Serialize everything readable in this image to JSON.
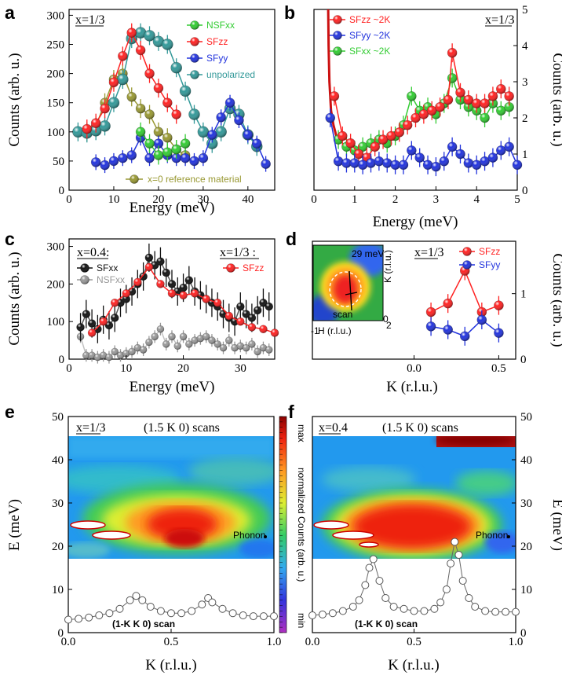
{
  "chart_data": [
    {
      "panel": "a",
      "type": "scatter",
      "xlabel": "Energy (meV)",
      "ylabel": "Counts (arb. u.)",
      "xlim": [
        0,
        46
      ],
      "ylim": [
        0,
        310
      ],
      "xticks": [
        "0",
        "10",
        "20",
        "30",
        "40"
      ],
      "yticks": [
        "0",
        "50",
        "100",
        "150",
        "200",
        "250",
        "300"
      ],
      "annotation": "x=1/3",
      "legend_position": "top-right",
      "series": [
        {
          "name": "NSFxx",
          "color": "#33cc33",
          "x": [
            16,
            18,
            20,
            22,
            24,
            26
          ],
          "y": [
            100,
            80,
            60,
            65,
            70,
            80
          ]
        },
        {
          "name": "SFzz",
          "color": "#ff2222",
          "x": [
            4,
            6,
            8,
            10,
            12,
            14,
            16,
            18,
            20,
            22,
            24
          ],
          "y": [
            105,
            115,
            140,
            185,
            230,
            270,
            240,
            200,
            175,
            150,
            130
          ]
        },
        {
          "name": "SFyy",
          "color": "#2233dd",
          "x": [
            6,
            8,
            10,
            12,
            14,
            16,
            18,
            20,
            22,
            24,
            26,
            28,
            30,
            32,
            34,
            36,
            38,
            40,
            42,
            44
          ],
          "y": [
            48,
            43,
            50,
            55,
            60,
            90,
            55,
            80,
            60,
            55,
            55,
            50,
            55,
            95,
            125,
            150,
            120,
            95,
            80,
            45
          ]
        },
        {
          "name": "unpolarized",
          "color": "#339999",
          "x": [
            2,
            4,
            6,
            8,
            10,
            12,
            14,
            16,
            18,
            20,
            22,
            24,
            26,
            28,
            30,
            32,
            34,
            36,
            38,
            40,
            42
          ],
          "y": [
            100,
            98,
            102,
            110,
            150,
            190,
            260,
            270,
            265,
            255,
            250,
            210,
            170,
            130,
            100,
            80,
            100,
            140,
            130,
            95,
            75
          ]
        },
        {
          "name": "x=0 reference material",
          "color": "#999933",
          "x": [
            4,
            6,
            8,
            10,
            12,
            14,
            16,
            18,
            20,
            22,
            24,
            26
          ],
          "y": [
            100,
            110,
            150,
            190,
            200,
            160,
            140,
            130,
            100,
            90,
            70,
            60
          ]
        }
      ]
    },
    {
      "panel": "b",
      "type": "scatter",
      "xlabel": "Energy (meV)",
      "ylabel": "Counts (arb. u.)",
      "xlim": [
        0,
        5
      ],
      "ylim": [
        0,
        5
      ],
      "xticks": [
        "0",
        "1",
        "2",
        "3",
        "4",
        "5"
      ],
      "yticks": [
        "0",
        "1",
        "2",
        "3",
        "4",
        "5"
      ],
      "annotation": "x=1/3",
      "legend_position": "top-left",
      "series": [
        {
          "name": "SFzz ~2K",
          "color": "#ff2222",
          "x": [
            0.5,
            0.7,
            0.9,
            1.1,
            1.3,
            1.5,
            1.7,
            1.9,
            2.1,
            2.3,
            2.5,
            2.7,
            2.9,
            3.1,
            3.3,
            3.4,
            3.6,
            3.8,
            4.0,
            4.2,
            4.4,
            4.6,
            4.8
          ],
          "y": [
            2.6,
            1.5,
            1.3,
            1.0,
            0.9,
            1.2,
            1.4,
            1.5,
            1.6,
            1.8,
            2.0,
            2.1,
            2.2,
            2.3,
            2.5,
            3.8,
            2.7,
            2.5,
            2.4,
            2.4,
            2.6,
            2.8,
            2.6
          ]
        },
        {
          "name": "SFyy ~2K",
          "color": "#2233dd",
          "x": [
            0.4,
            0.6,
            0.8,
            1.0,
            1.2,
            1.4,
            1.6,
            1.8,
            2.0,
            2.2,
            2.4,
            2.6,
            2.8,
            3.0,
            3.2,
            3.4,
            3.6,
            3.8,
            4.0,
            4.2,
            4.4,
            4.6,
            4.8,
            5.0
          ],
          "y": [
            2.0,
            0.8,
            0.75,
            0.75,
            0.7,
            0.75,
            0.8,
            0.75,
            0.7,
            0.7,
            1.1,
            0.9,
            0.7,
            0.65,
            0.8,
            1.2,
            1.0,
            0.75,
            0.7,
            0.8,
            0.9,
            1.1,
            1.2,
            0.7
          ]
        },
        {
          "name": "SFxx ~2K",
          "color": "#33cc33",
          "x": [
            0.6,
            0.8,
            1.0,
            1.2,
            1.4,
            1.6,
            1.8,
            2.0,
            2.2,
            2.4,
            2.6,
            2.8,
            3.0,
            3.2,
            3.4,
            3.6,
            3.8,
            4.0,
            4.2,
            4.4,
            4.6,
            4.8
          ],
          "y": [
            1.4,
            1.2,
            1.1,
            1.2,
            1.3,
            1.4,
            1.3,
            1.5,
            1.8,
            2.6,
            2.2,
            2.3,
            2.1,
            2.4,
            3.1,
            2.5,
            2.3,
            2.2,
            2.0,
            2.4,
            2.2,
            2.3
          ]
        }
      ],
      "divergence": {
        "x": [
          0.35,
          0.36,
          0.38,
          0.42,
          0.48,
          0.55
        ],
        "y": [
          5.0,
          4.0,
          3.0,
          2.2,
          1.8,
          1.5
        ]
      }
    },
    {
      "panel": "c",
      "type": "scatter",
      "xlabel": "Energy (meV)",
      "ylabel": "Counts (arb. u.)",
      "xlim": [
        0,
        36
      ],
      "ylim": [
        0,
        320
      ],
      "xticks": [
        "0",
        "10",
        "20",
        "30"
      ],
      "yticks": [
        "0",
        "100",
        "200",
        "300"
      ],
      "annotations": [
        "x=0.4:",
        "x=1/3 :"
      ],
      "series": [
        {
          "name": "SFxx",
          "color": "#111111",
          "x": [
            2,
            3,
            4,
            5,
            6,
            7,
            8,
            9,
            10,
            11,
            12,
            13,
            14,
            15,
            16,
            17,
            18,
            19,
            20,
            21,
            22,
            23,
            24,
            25,
            26,
            27,
            28,
            29,
            30,
            31,
            32,
            33,
            34,
            35
          ],
          "y": [
            85,
            120,
            95,
            80,
            105,
            90,
            110,
            150,
            160,
            180,
            200,
            220,
            270,
            250,
            260,
            230,
            200,
            180,
            190,
            210,
            180,
            170,
            160,
            150,
            140,
            120,
            110,
            100,
            140,
            120,
            110,
            130,
            150,
            140
          ]
        },
        {
          "name": "NSFxx",
          "color": "#999999",
          "x": [
            2,
            3,
            4,
            5,
            6,
            7,
            8,
            9,
            10,
            11,
            12,
            13,
            14,
            15,
            16,
            17,
            18,
            19,
            20,
            21,
            22,
            23,
            24,
            25,
            26,
            27,
            28,
            29,
            30,
            31,
            32,
            33,
            34,
            35
          ],
          "y": [
            60,
            10,
            10,
            5,
            10,
            5,
            20,
            10,
            15,
            20,
            30,
            25,
            45,
            60,
            80,
            40,
            60,
            35,
            60,
            40,
            50,
            55,
            60,
            50,
            40,
            30,
            50,
            30,
            35,
            30,
            40,
            20,
            30,
            25
          ]
        },
        {
          "name": "SFzz",
          "color": "#ff2222",
          "x": [
            4,
            6,
            8,
            10,
            12,
            14,
            16,
            18,
            20,
            22,
            24,
            26,
            28,
            30,
            32,
            34,
            36
          ],
          "y": [
            70,
            100,
            150,
            175,
            205,
            245,
            200,
            175,
            170,
            175,
            160,
            150,
            115,
            100,
            85,
            80,
            70
          ]
        }
      ]
    },
    {
      "panel": "d",
      "type": "scatter",
      "xlabel": "K (r.l.u.)",
      "ylabel": "Counts (arb. u.)",
      "xlim": [
        -0.6,
        0.6
      ],
      "ylim": [
        0,
        1.8
      ],
      "xticks": [
        "0.0",
        "0.5"
      ],
      "yticks": [
        "0",
        "1"
      ],
      "annotation": "x=1/3",
      "series": [
        {
          "name": "SFzz",
          "color": "#ff2222",
          "x": [
            0.1,
            0.2,
            0.3,
            0.4,
            0.5
          ],
          "y": [
            0.72,
            0.85,
            1.35,
            0.72,
            0.82
          ]
        },
        {
          "name": "SFyy",
          "color": "#2233dd",
          "x": [
            0.1,
            0.2,
            0.3,
            0.4,
            0.5
          ],
          "y": [
            0.5,
            0.45,
            0.35,
            0.6,
            0.4
          ]
        }
      ],
      "inset": {
        "label": "29 meV",
        "xlabel": "H (r.l.u.)",
        "ylabel": "K (r.l.u.)",
        "scan_label": "scan",
        "xtick": "-1",
        "ytick": "2",
        "ytick0": "0"
      }
    },
    {
      "panel": "e",
      "type": "heatmap",
      "xlabel": "K (r.l.u.)",
      "ylabel": "E (meV)",
      "xlim": [
        0,
        1
      ],
      "ylim": [
        0,
        50
      ],
      "xticks": [
        "0.0",
        "0.5",
        "1.0"
      ],
      "yticks": [
        "0",
        "10",
        "20",
        "30",
        "40",
        "50"
      ],
      "annotation": "x=1/3",
      "title": "(1.5 K 0) scans",
      "phonon_label": "Phonon",
      "scan_label": "(1-K K 0) scan",
      "colorbar": {
        "label": "normalized  Counts (arb. u.)",
        "min": "min",
        "max": "max"
      },
      "scan": {
        "x": [
          0.0,
          0.05,
          0.1,
          0.15,
          0.2,
          0.25,
          0.3,
          0.33,
          0.36,
          0.4,
          0.45,
          0.5,
          0.55,
          0.6,
          0.65,
          0.68,
          0.7,
          0.75,
          0.8,
          0.85,
          0.9,
          0.95,
          1.0
        ],
        "y": [
          3,
          3.2,
          3.5,
          4,
          4.5,
          5.5,
          7.5,
          8.5,
          7.5,
          6,
          5,
          4.5,
          4.5,
          5,
          6.5,
          8,
          7,
          5.5,
          4.5,
          4,
          3.8,
          3.8,
          3.8
        ]
      }
    },
    {
      "panel": "f",
      "type": "heatmap",
      "xlabel": "K (r.l.u.)",
      "ylabel": "E (meV)",
      "xlim": [
        0,
        1
      ],
      "ylim": [
        0,
        50
      ],
      "xticks": [
        "0.0",
        "0.5",
        "1.0"
      ],
      "yticks": [
        "0",
        "10",
        "20",
        "30",
        "40",
        "50"
      ],
      "annotation": "x=0.4",
      "title": "(1.5 K 0) scans",
      "phonon_label": "Phonon",
      "scan_label": "(1-K K 0) scan",
      "scan": {
        "x": [
          0.0,
          0.05,
          0.1,
          0.15,
          0.2,
          0.23,
          0.26,
          0.28,
          0.3,
          0.33,
          0.36,
          0.4,
          0.45,
          0.5,
          0.55,
          0.6,
          0.63,
          0.66,
          0.68,
          0.7,
          0.72,
          0.74,
          0.77,
          0.8,
          0.85,
          0.9,
          0.95,
          1.0
        ],
        "y": [
          4,
          4.2,
          4.5,
          5,
          6,
          7.5,
          11,
          15,
          17,
          12,
          8,
          6,
          5.5,
          5,
          5,
          5.5,
          7,
          10,
          16,
          21,
          18,
          12,
          8,
          6,
          5,
          4.8,
          4.8,
          4.8
        ]
      }
    }
  ]
}
